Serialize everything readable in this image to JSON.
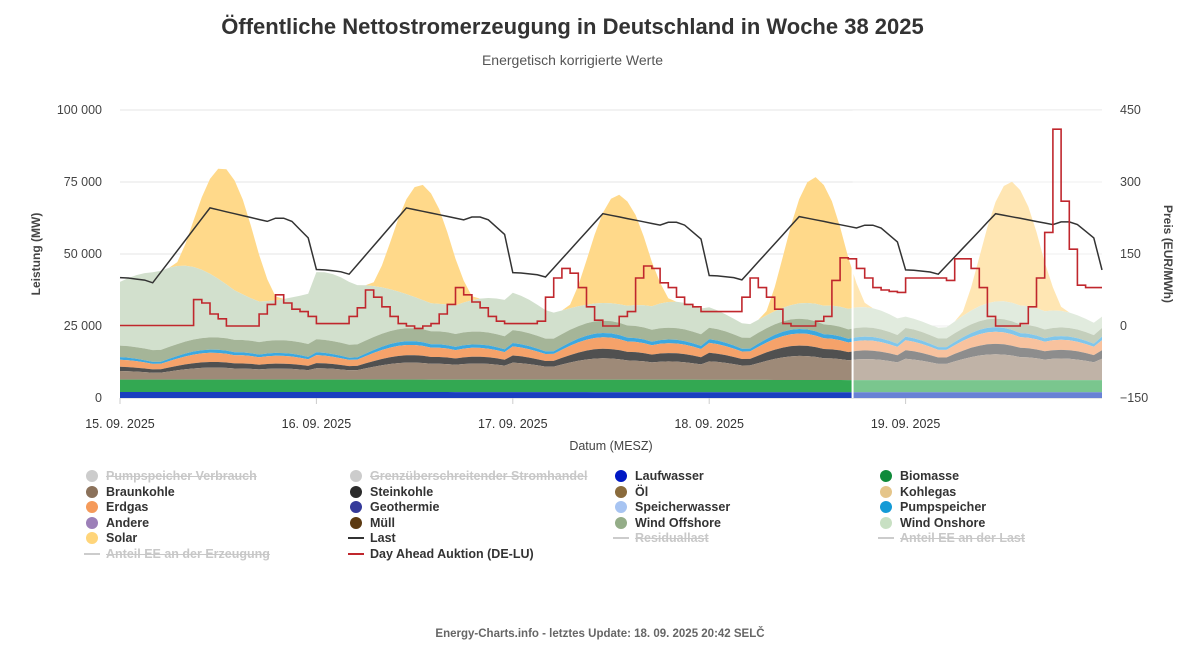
{
  "title": "Öffentliche Nettostromerzeugung in Deutschland in Woche 38 2025",
  "subtitle": "Energetisch korrigierte Werte",
  "footer": "Energy-Charts.info - letztes Update: 18. 09. 2025 20:42 SELČ",
  "chart_data": {
    "type": "area",
    "xlabel": "Datum (MESZ)",
    "ylabel": "Leistung (MW)",
    "y2label": "Preis (EUR/MWh)",
    "ylim": [
      0,
      100000
    ],
    "y2lim": [
      -150,
      450
    ],
    "yticks": [
      "0",
      "25 000",
      "50 000",
      "75 000",
      "100 000"
    ],
    "y2ticks": [
      "−150",
      "0",
      "150",
      "300",
      "450"
    ],
    "xticks": [
      "15. 09. 2025",
      "16. 09. 2025",
      "17. 09. 2025",
      "18. 09. 2025",
      "19. 09. 2025"
    ],
    "x_days": [
      15,
      16,
      17,
      18,
      19,
      20
    ],
    "forecast_start_day": 18.73,
    "grid": true,
    "legend_position": "bottom",
    "stacked_series": [
      {
        "name": "Laufwasser",
        "color": "#1a3fbf",
        "daily_mw": [
          2100,
          2100,
          2050,
          2000,
          2000
        ]
      },
      {
        "name": "Biomasse",
        "color": "#33a852",
        "daily_mw": [
          4300,
          4300,
          4300,
          4300,
          4200
        ]
      },
      {
        "name": "Braunkohle",
        "color": "#9e8a78",
        "daily_mw": [
          3000,
          4000,
          6000,
          6500,
          7500
        ]
      },
      {
        "name": "Steinkohle",
        "color": "#505050",
        "daily_mw": [
          1500,
          1800,
          2500,
          3000,
          3000
        ]
      },
      {
        "name": "Erdgas",
        "color": "#f5a26a",
        "daily_mw": [
          2500,
          2800,
          3200,
          3500,
          3500
        ]
      },
      {
        "name": "Pumpspeicher",
        "color": "#3ca8e0",
        "daily_mw": [
          900,
          1000,
          1200,
          1300,
          1300
        ]
      },
      {
        "name": "Wind Offshore",
        "color": "#a5b598",
        "daily_mw": [
          4000,
          4500,
          4500,
          4000,
          3000
        ]
      },
      {
        "name": "Wind Onshore",
        "color": "#d2e0cd",
        "daily_mw": [
          26000,
          22000,
          12000,
          8000,
          6000
        ]
      },
      {
        "name": "Solar",
        "color": "#ffd98a",
        "daily_peak_mw": [
          40000,
          40000,
          38000,
          44000,
          42000
        ]
      }
    ],
    "series": [
      {
        "name": "Last",
        "color": "#333333",
        "daily_min_mw": [
          40000,
          43000,
          42000,
          41000,
          43000
        ],
        "daily_max_mw": [
          66000,
          66000,
          64000,
          63000,
          64000
        ]
      },
      {
        "name": "Day Ahead Auktion (DE-LU)",
        "color": "#c0272d",
        "axis": "Preis (EUR/MWh)",
        "hourly_eur_mwh": [
          1,
          1,
          1,
          1,
          1,
          1,
          1,
          1,
          1,
          55,
          48,
          25,
          15,
          0,
          0,
          0,
          0,
          25,
          45,
          65,
          48,
          35,
          30,
          20,
          5,
          5,
          5,
          5,
          20,
          38,
          75,
          60,
          40,
          20,
          5,
          0,
          -5,
          0,
          5,
          25,
          45,
          80,
          65,
          50,
          38,
          20,
          10,
          5,
          5,
          5,
          5,
          10,
          60,
          100,
          120,
          110,
          80,
          40,
          12,
          0,
          0,
          20,
          30,
          100,
          125,
          120,
          90,
          80,
          60,
          45,
          40,
          30,
          30,
          30,
          30,
          30,
          60,
          100,
          80,
          60,
          35,
          5,
          0,
          0,
          0,
          10,
          20,
          95,
          142,
          140,
          120,
          100,
          80,
          75,
          72,
          70,
          100,
          100,
          100,
          100,
          100,
          95,
          140,
          140,
          120,
          80,
          20,
          0,
          0,
          0,
          5,
          40,
          100,
          195,
          410,
          260,
          160,
          85,
          80,
          80
        ]
      }
    ]
  },
  "legend": [
    {
      "label": "Pumpspeicher Verbrauch",
      "symbol": "circle",
      "color": "#cccccc",
      "off": true
    },
    {
      "label": "Grenzüberschreitender Stromhandel",
      "symbol": "circle",
      "color": "#cccccc",
      "off": true
    },
    {
      "label": "Laufwasser",
      "symbol": "circle",
      "color": "#0018c4",
      "off": false
    },
    {
      "label": "Biomasse",
      "symbol": "circle",
      "color": "#0f8a3a",
      "off": false
    },
    {
      "label": "Braunkohle",
      "symbol": "circle",
      "color": "#8b715a",
      "off": false
    },
    {
      "label": "Steinkohle",
      "symbol": "circle",
      "color": "#2b2b2b",
      "off": false
    },
    {
      "label": "Öl",
      "symbol": "circle",
      "color": "#8a6b3c",
      "off": false
    },
    {
      "label": "Kohlegas",
      "symbol": "circle",
      "color": "#e5c58a",
      "off": false
    },
    {
      "label": "Erdgas",
      "symbol": "circle",
      "color": "#f59a5a",
      "off": false
    },
    {
      "label": "Geothermie",
      "symbol": "circle",
      "color": "#343a9a",
      "off": false
    },
    {
      "label": "Speicherwasser",
      "symbol": "circle",
      "color": "#a7c4f2",
      "off": false
    },
    {
      "label": "Pumpspeicher",
      "symbol": "circle",
      "color": "#149ad6",
      "off": false
    },
    {
      "label": "Andere",
      "symbol": "circle",
      "color": "#9c7fb8",
      "off": false
    },
    {
      "label": "Müll",
      "symbol": "circle",
      "color": "#5c3a12",
      "off": false
    },
    {
      "label": "Wind Offshore",
      "symbol": "circle",
      "color": "#94ad88",
      "off": false
    },
    {
      "label": "Wind Onshore",
      "symbol": "circle",
      "color": "#c8e0c3",
      "off": false
    },
    {
      "label": "Solar",
      "symbol": "circle",
      "color": "#ffd57a",
      "off": false
    },
    {
      "label": "Last",
      "symbol": "line",
      "color": "#333333",
      "off": false
    },
    {
      "label": "Residuallast",
      "symbol": "line",
      "color": "#cccccc",
      "off": true
    },
    {
      "label": "Anteil EE an der Last",
      "symbol": "line",
      "color": "#cccccc",
      "off": true
    },
    {
      "label": "Anteil EE an der Erzeugung",
      "symbol": "line",
      "color": "#cccccc",
      "off": true
    },
    {
      "label": "Day Ahead Auktion (DE-LU)",
      "symbol": "line",
      "color": "#c0272d",
      "off": false
    }
  ]
}
